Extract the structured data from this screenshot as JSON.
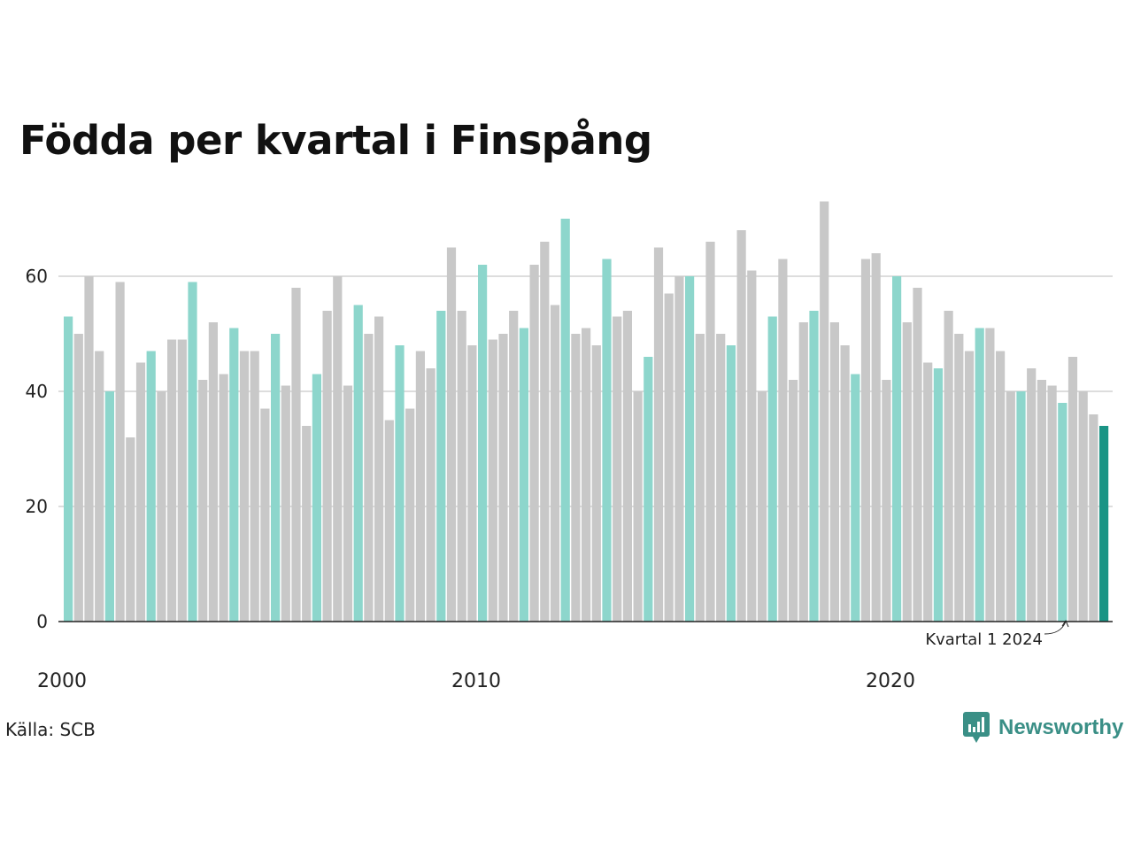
{
  "title": "Födda per kvartal i Finspång",
  "source": "Källa: SCB",
  "brand": {
    "name": "Newsworthy",
    "icon": "newsworthy-logo-icon"
  },
  "colors": {
    "first_quarter": "#8dd6cc",
    "other_quarter": "#c8c8c8",
    "latest": "#1a9485",
    "grid": "#dddddd",
    "axis": "#222222"
  },
  "chart_data": {
    "type": "bar",
    "title": "Födda per kvartal i Finspång",
    "xlabel": "",
    "ylabel": "",
    "ylim": [
      0,
      75
    ],
    "yticks": [
      0,
      20,
      40,
      60
    ],
    "grid": true,
    "x_tick_labels": [
      {
        "label": "2000",
        "year": 2000
      },
      {
        "label": "2010",
        "year": 2010
      },
      {
        "label": "2020",
        "year": 2020
      }
    ],
    "start": {
      "year": 2000,
      "quarter": 1
    },
    "highlight": "quarter 1 of each year",
    "annotation": {
      "text": "Kvartal 1 2024",
      "year": 2024,
      "quarter": 1
    },
    "values": [
      53,
      50,
      60,
      47,
      40,
      59,
      32,
      45,
      47,
      40,
      49,
      49,
      59,
      42,
      52,
      43,
      51,
      47,
      47,
      37,
      50,
      41,
      58,
      34,
      43,
      54,
      60,
      41,
      55,
      50,
      53,
      35,
      48,
      37,
      47,
      44,
      54,
      65,
      54,
      48,
      62,
      49,
      50,
      54,
      51,
      62,
      66,
      55,
      70,
      50,
      51,
      48,
      63,
      53,
      54,
      40,
      46,
      65,
      57,
      60,
      60,
      50,
      66,
      50,
      48,
      68,
      61,
      40,
      53,
      63,
      42,
      52,
      54,
      73,
      52,
      48,
      43,
      63,
      64,
      42,
      60,
      52,
      58,
      45,
      44,
      54,
      50,
      47,
      51,
      51,
      47,
      40,
      40,
      44,
      42,
      41,
      38,
      46,
      40,
      36,
      34
    ]
  }
}
